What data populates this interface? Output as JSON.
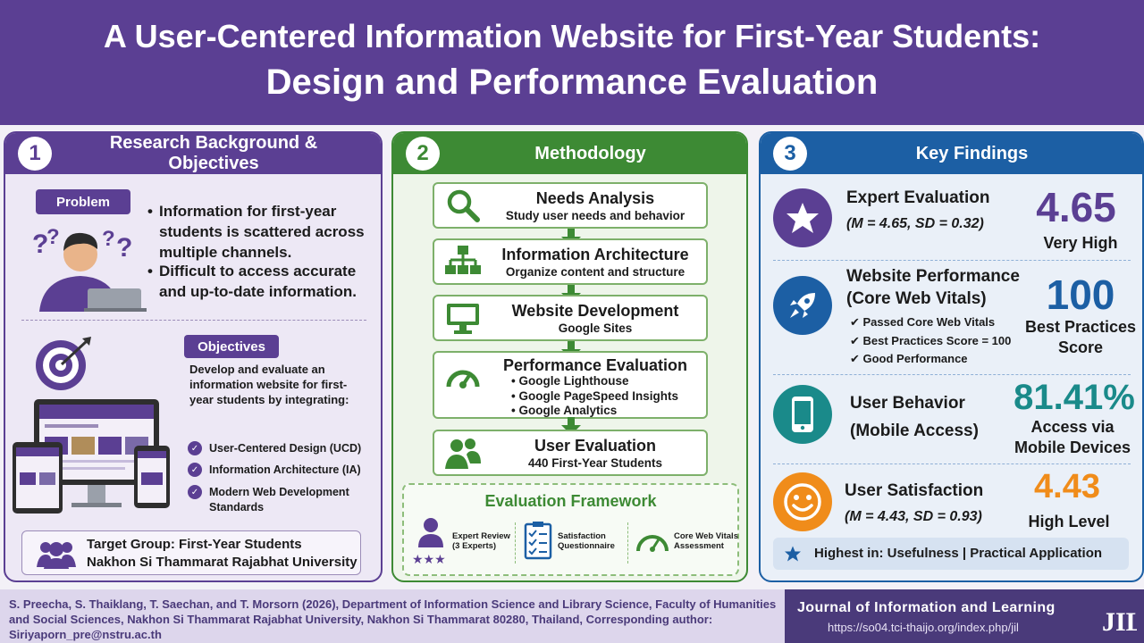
{
  "header": {
    "title_line1": "A User-Centered Information Website for First-Year Students:",
    "title_line2": "Design and Performance Evaluation"
  },
  "panel1": {
    "number": "1",
    "title": "Research Background  & Objectives",
    "problem_tag": "Problem",
    "problems": [
      "Information for first-year students is scattered across multiple channels.",
      "Difficult to access accurate and up-to-date information."
    ],
    "objectives_tag": "Objectives",
    "objectives_text": "Develop and evaluate an information website for first-year students by integrating:",
    "checks": [
      "User-Centered Design (UCD)",
      "Information Architecture (IA)",
      "Modern Web Development Standards"
    ],
    "target_line1": "Target Group: First-Year Students",
    "target_line2": "Nakhon Si Thammarat Rajabhat University"
  },
  "panel2": {
    "number": "2",
    "title": "Methodology",
    "steps": [
      {
        "title": "Needs Analysis",
        "desc": "Study user needs and behavior"
      },
      {
        "title": "Information Architecture",
        "desc": "Organize content and structure"
      },
      {
        "title": "Website Development",
        "desc": "Google Sites"
      },
      {
        "title": "Performance Evaluation",
        "items": [
          "• Google Lighthouse",
          "• Google PageSpeed Insights",
          "• Google Analytics"
        ]
      },
      {
        "title": "User Evaluation",
        "desc": "440 First-Year Students"
      }
    ],
    "framework": {
      "title": "Evaluation Framework",
      "items": [
        "Expert Review (3 Experts)",
        "Satisfaction Questionnaire",
        "Core Web Vitals Assessment"
      ]
    }
  },
  "panel3": {
    "number": "3",
    "title": "Key Findings",
    "expert": {
      "title": "Expert Evaluation",
      "stats": "(M = 4.65, SD = 0.32)",
      "value": "4.65",
      "label": "Very High"
    },
    "performance": {
      "title_line1": "Website Performance",
      "title_line2": "(Core Web Vitals)",
      "checks": [
        "✔ Passed Core Web Vitals",
        "✔ Best Practices Score = 100",
        "✔ Good Performance"
      ],
      "value": "100",
      "label_line1": "Best Practices",
      "label_line2": "Score"
    },
    "behavior": {
      "title": "User Behavior",
      "subtitle": "(Mobile Access)",
      "value": "81.41%",
      "label_line1": "Access via",
      "label_line2": "Mobile Devices"
    },
    "satisfaction": {
      "title": "User Satisfaction",
      "stats": "(M = 4.43, SD = 0.93)",
      "value": "4.43",
      "label": "High Level"
    },
    "highlight": "Highest in: Usefulness | Practical Application"
  },
  "footer": {
    "citation": "S. Preecha, S. Thaiklang, T. Saechan, and T. Morsorn (2026), Department of Information Science and Library Science, Faculty of Humanities and Social Sciences, Nakhon Si Thammarat Rajabhat University, Nakhon Si Thammarat 80280, Thailand, Corresponding author: Siriyaporn_pre@nstru.ac.th",
    "journal": "Journal of Information and Learning",
    "url": "https://so04.tci-thaijo.org/index.php/jil",
    "logo_text": "JIL"
  },
  "colors": {
    "purple": "#5b3f93",
    "green": "#3d8a34",
    "blue": "#1c5fa4",
    "orange": "#f08c1a",
    "teal": "#1a8a8a"
  },
  "icons": [
    "magnifier-icon",
    "sitemap-icon",
    "monitor-icon",
    "gauge-icon",
    "users-icon",
    "star-icon",
    "rocket-icon",
    "smartphone-icon",
    "smiley-icon",
    "target-icon",
    "clipboard-icon"
  ]
}
